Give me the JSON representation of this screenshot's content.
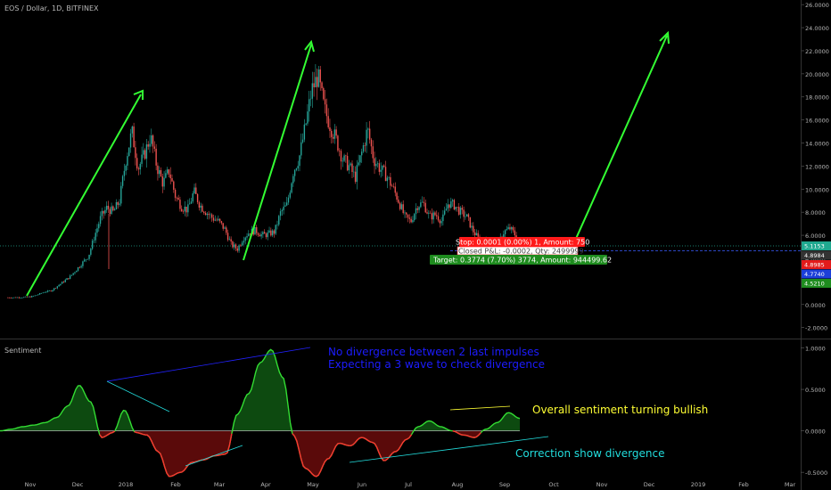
{
  "header": {
    "symbol_title": "EOS / Dollar, 1D, BITFINEX"
  },
  "sentiment_panel": {
    "label": "Sentiment"
  },
  "colors": {
    "background": "#000000",
    "bull_candle": "#26a69a",
    "bear_candle": "#ef5350",
    "green_arrow": "#33ff33",
    "sentiment_line": "#33dd33",
    "sentiment_pos_fill": "#0d4a10",
    "sentiment_neg_fill": "#5a0a0a",
    "stop_red": "#ff1a1a",
    "target_green": "#1e8c1e",
    "blue_text": "#1c1cff",
    "yellow_text": "#ffff33",
    "cyan_text": "#22dddd"
  },
  "chart_data": [
    {
      "type": "candlestick",
      "title": "EOS / Dollar, 1D, BITFINEX",
      "x_ticks": [
        "Nov",
        "Dec",
        "2018",
        "Feb",
        "Mar",
        "Apr",
        "May",
        "Jun",
        "Jul",
        "Aug",
        "Sep",
        "Oct",
        "Nov",
        "Dec",
        "2019",
        "Feb",
        "Mar"
      ],
      "y_ticks": [
        "26.0000",
        "24.0000",
        "22.0000",
        "20.0000",
        "18.0000",
        "16.0000",
        "14.0000",
        "12.0000",
        "10.0000",
        "8.0000",
        "6.0000",
        "4.0000",
        "2.0000",
        "0.0000",
        "-2.0000"
      ],
      "ylim": [
        -2.8,
        26.4
      ],
      "grid": false,
      "price_series": [
        0.6,
        0.6,
        0.62,
        0.63,
        0.7,
        0.9,
        1.1,
        1.2,
        1.6,
        2.0,
        2.4,
        3.0,
        3.6,
        4.2,
        6.0,
        7.6,
        8.4,
        8.0,
        9.0,
        12.5,
        15.0,
        11.8,
        13.0,
        14.6,
        12.0,
        10.5,
        11.6,
        9.4,
        8.5,
        8.2,
        9.8,
        8.6,
        8.0,
        7.5,
        7.2,
        6.5,
        5.2,
        4.8,
        5.8,
        6.3,
        6.4,
        6.0,
        6.1,
        6.3,
        8.0,
        8.6,
        11.5,
        12.8,
        15.5,
        18.6,
        19.8,
        17.0,
        15.5,
        14.2,
        12.6,
        12.0,
        11.0,
        13.0,
        15.2,
        12.6,
        11.8,
        11.2,
        10.2,
        9.0,
        7.6,
        7.2,
        8.6,
        8.8,
        7.6,
        7.8,
        7.2,
        8.8,
        8.6,
        8.0,
        7.6,
        6.4,
        5.6,
        5.4,
        5.5,
        5.2,
        6.3,
        6.6,
        5.9
      ],
      "series": [
        {
          "name": "Stop",
          "label": "Stop: 0.0001 (0.00%) 1, Amount: 750",
          "price": 4.8985
        },
        {
          "name": "Closed P&L",
          "label": "Closed P&L: -0.0002, Qty: 2499999",
          "price": 4.8984
        },
        {
          "name": "Target",
          "label": "Target: 0.3774 (7.70%) 3774, Amount: 944499.62",
          "price": 4.521
        }
      ],
      "price_axis_labels": [
        {
          "value": "5.1153",
          "color": "#1fa88f"
        },
        {
          "value": "4.8984",
          "color": "#333333"
        },
        {
          "value": "4.8985",
          "color": "#e31b1b"
        },
        {
          "value": "4.7740",
          "color": "#1c3fd9"
        },
        {
          "value": "4.5210",
          "color": "#1e8c1e"
        }
      ]
    },
    {
      "type": "area",
      "title": "Sentiment",
      "y_ticks": [
        "1.0000",
        "0.5000",
        "0.0000",
        "-0.5000"
      ],
      "ylim": [
        -0.67,
        1.07
      ],
      "values": [
        0.0,
        0.02,
        0.05,
        0.07,
        0.1,
        0.16,
        0.3,
        0.55,
        0.35,
        -0.08,
        -0.02,
        0.25,
        -0.02,
        -0.05,
        -0.25,
        -0.55,
        -0.5,
        -0.38,
        -0.35,
        -0.3,
        -0.28,
        0.2,
        0.45,
        0.82,
        0.98,
        0.65,
        -0.06,
        -0.45,
        -0.55,
        -0.34,
        -0.15,
        -0.18,
        -0.08,
        -0.14,
        -0.36,
        -0.25,
        -0.1,
        0.05,
        0.12,
        0.05,
        0.0,
        -0.05,
        -0.08,
        0.02,
        0.1,
        0.22,
        0.15
      ]
    }
  ],
  "annotations": {
    "blue_line1": "No divergence between 2 last impulses",
    "blue_line2": "Expecting a 3 wave to check divergence",
    "yellow_text": "Overall sentiment turning bullish",
    "cyan_text": "Correction show divergence"
  }
}
